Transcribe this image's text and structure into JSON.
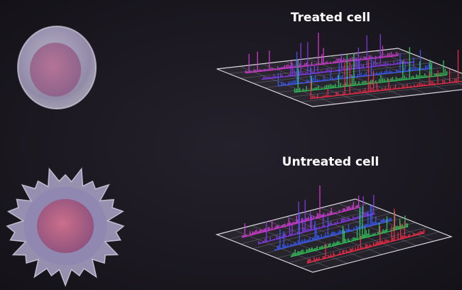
{
  "panels": [
    {
      "label": "Treated cell"
    },
    {
      "label": "Untreated cell"
    }
  ]
}
